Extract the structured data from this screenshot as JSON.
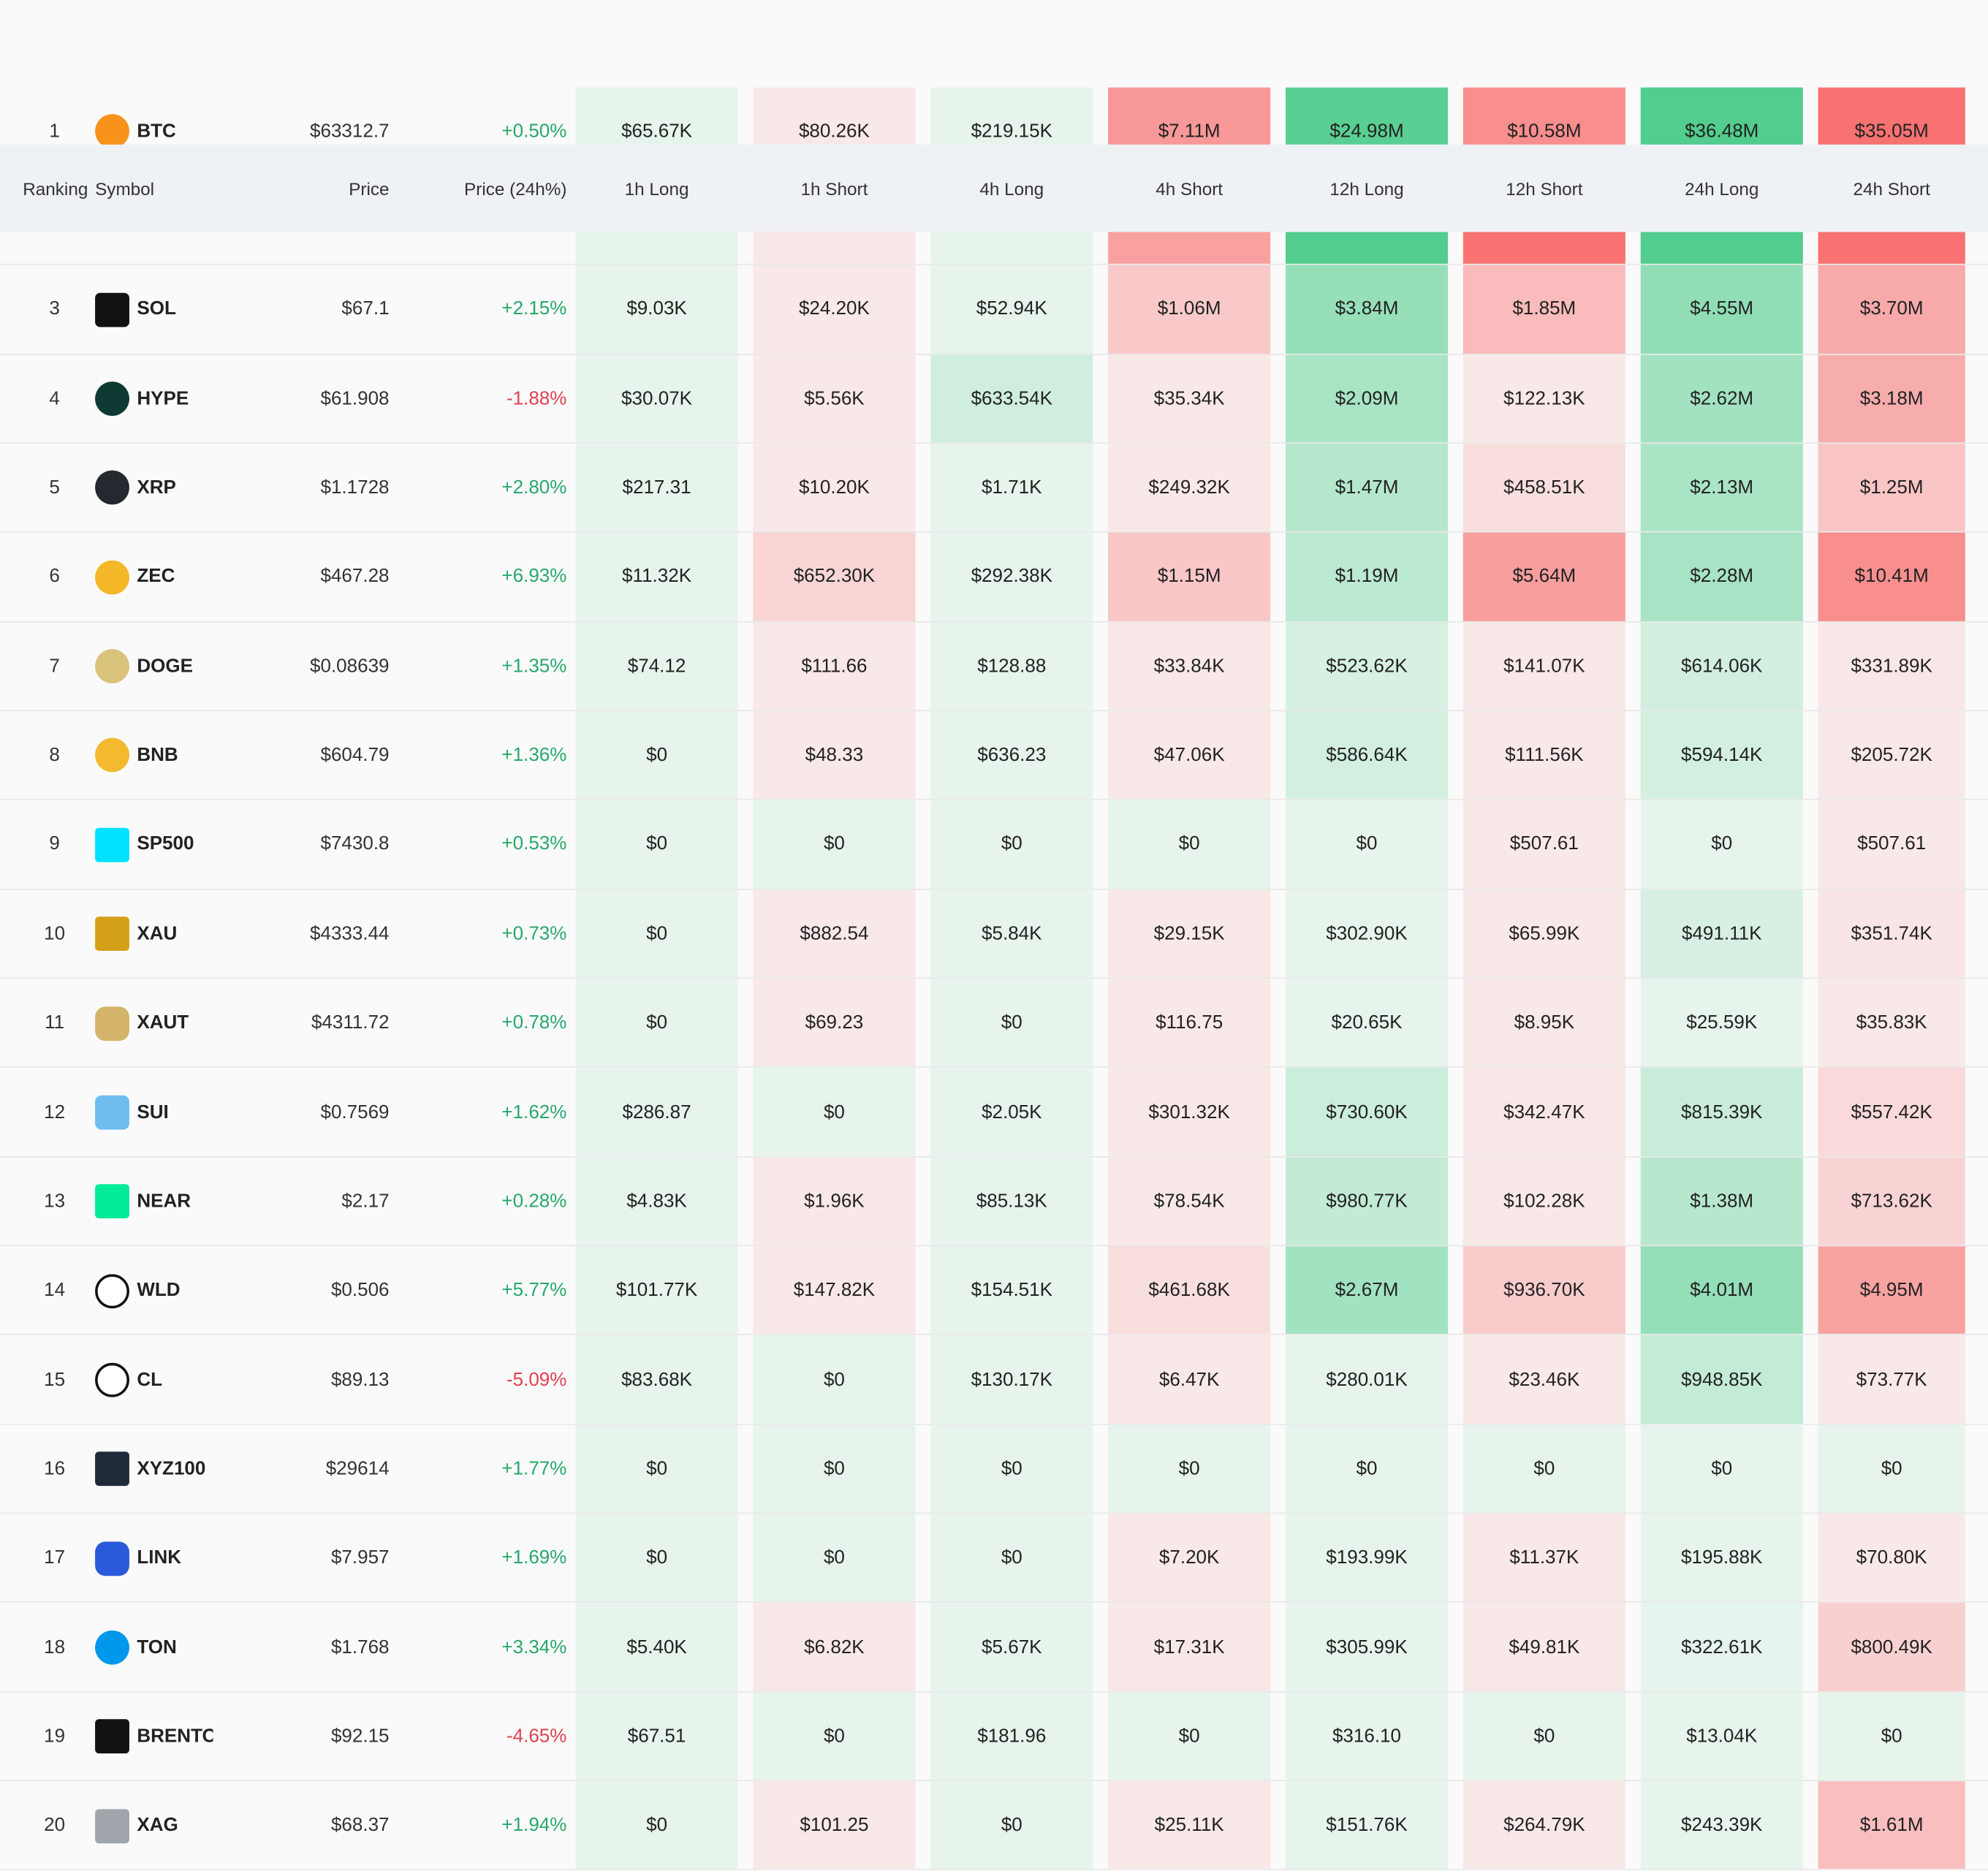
{
  "table": {
    "headers": [
      "Ranking",
      "Symbol",
      "Price",
      "Price (24h%)",
      "1h Long",
      "1h Short",
      "4h Long",
      "4h Short",
      "12h Long",
      "12h Short",
      "24h Long",
      "24h Short"
    ],
    "rows": [
      {
        "ranking": 1,
        "symbol": "BTC",
        "price": "$63312.7",
        "change": "+0.50%",
        "values": [
          "$65.67K",
          "$80.26K",
          "$219.15K",
          "$7.11M",
          "$24.98M",
          "$10.58M",
          "$36.48M",
          "$35.05M"
        ]
      },
      {
        "ranking": 3,
        "symbol": "SOL",
        "price": "$67.1",
        "change": "+2.15%",
        "values": [
          "$9.03K",
          "$24.20K",
          "$52.94K",
          "$1.06M",
          "$3.84M",
          "$1.85M",
          "$4.55M",
          "$3.70M"
        ]
      },
      {
        "ranking": 4,
        "symbol": "HYPE",
        "price": "$61.908",
        "change": "-1.88%",
        "values": [
          "$30.07K",
          "$5.56K",
          "$633.54K",
          "$35.34K",
          "$2.09M",
          "$122.13K",
          "$2.62M",
          "$3.18M"
        ]
      },
      {
        "ranking": 5,
        "symbol": "XRP",
        "price": "$1.1728",
        "change": "+2.80%",
        "values": [
          "$217.31",
          "$10.20K",
          "$1.71K",
          "$249.32K",
          "$1.47M",
          "$458.51K",
          "$2.13M",
          "$1.25M"
        ]
      },
      {
        "ranking": 6,
        "symbol": "ZEC",
        "price": "$467.28",
        "change": "+6.93%",
        "values": [
          "$11.32K",
          "$652.30K",
          "$292.38K",
          "$1.15M",
          "$1.19M",
          "$5.64M",
          "$2.28M",
          "$10.41M"
        ]
      },
      {
        "ranking": 7,
        "symbol": "DOGE",
        "price": "$0.08639",
        "change": "+1.35%",
        "values": [
          "$74.12",
          "$111.66",
          "$128.88",
          "$33.84K",
          "$523.62K",
          "$141.07K",
          "$614.06K",
          "$331.89K"
        ]
      },
      {
        "ranking": 8,
        "symbol": "BNB",
        "price": "$604.79",
        "change": "+1.36%",
        "values": [
          "$0",
          "$48.33",
          "$636.23",
          "$47.06K",
          "$586.64K",
          "$111.56K",
          "$594.14K",
          "$205.72K"
        ]
      },
      {
        "ranking": 9,
        "symbol": "SP500",
        "price": "$7430.8",
        "change": "+0.53%",
        "values": [
          "$0",
          "$0",
          "$0",
          "$0",
          "$0",
          "$507.61",
          "$0",
          "$507.61"
        ]
      },
      {
        "ranking": 10,
        "symbol": "XAU",
        "price": "$4333.44",
        "change": "+0.73%",
        "values": [
          "$0",
          "$882.54",
          "$5.84K",
          "$29.15K",
          "$302.90K",
          "$65.99K",
          "$491.11K",
          "$351.74K"
        ]
      },
      {
        "ranking": 11,
        "symbol": "XAUT",
        "price": "$4311.72",
        "change": "+0.78%",
        "values": [
          "$0",
          "$69.23",
          "$0",
          "$116.75",
          "$20.65K",
          "$8.95K",
          "$25.59K",
          "$35.83K"
        ]
      },
      {
        "ranking": 12,
        "symbol": "SUI",
        "price": "$0.7569",
        "change": "+1.62%",
        "values": [
          "$286.87",
          "$0",
          "$2.05K",
          "$301.32K",
          "$730.60K",
          "$342.47K",
          "$815.39K",
          "$557.42K"
        ]
      },
      {
        "ranking": 13,
        "symbol": "NEAR",
        "price": "$2.17",
        "change": "+0.28%",
        "values": [
          "$4.83K",
          "$1.96K",
          "$85.13K",
          "$78.54K",
          "$980.77K",
          "$102.28K",
          "$1.38M",
          "$713.62K"
        ]
      },
      {
        "ranking": 14,
        "symbol": "WLD",
        "price": "$0.506",
        "change": "+5.77%",
        "values": [
          "$101.77K",
          "$147.82K",
          "$154.51K",
          "$461.68K",
          "$2.67M",
          "$936.70K",
          "$4.01M",
          "$4.95M"
        ]
      },
      {
        "ranking": 15,
        "symbol": "CL",
        "price": "$89.13",
        "change": "-5.09%",
        "values": [
          "$83.68K",
          "$0",
          "$130.17K",
          "$6.47K",
          "$280.01K",
          "$23.46K",
          "$948.85K",
          "$73.77K"
        ]
      },
      {
        "ranking": 16,
        "symbol": "XYZ100",
        "price": "$29614",
        "change": "+1.77%",
        "values": [
          "$0",
          "$0",
          "$0",
          "$0",
          "$0",
          "$0",
          "$0",
          "$0"
        ]
      },
      {
        "ranking": 17,
        "symbol": "LINK",
        "price": "$7.957",
        "change": "+1.69%",
        "values": [
          "$0",
          "$0",
          "$0",
          "$7.20K",
          "$193.99K",
          "$11.37K",
          "$195.88K",
          "$70.80K"
        ]
      },
      {
        "ranking": 18,
        "symbol": "TON",
        "price": "$1.768",
        "change": "+3.34%",
        "values": [
          "$5.40K",
          "$6.82K",
          "$5.67K",
          "$17.31K",
          "$305.99K",
          "$49.81K",
          "$322.61K",
          "$800.49K"
        ]
      },
      {
        "ranking": 19,
        "symbol": "BRENTOIL",
        "price": "$92.15",
        "change": "-4.65%",
        "values": [
          "$67.51",
          "$0",
          "$181.96",
          "$0",
          "$316.10",
          "$0",
          "$13.04K",
          "$0"
        ]
      },
      {
        "ranking": 20,
        "symbol": "XAG",
        "price": "$68.37",
        "change": "+1.94%",
        "values": [
          "$0",
          "$101.25",
          "$0",
          "$25.11K",
          "$151.76K",
          "$264.79K",
          "$243.39K",
          "$1.61M"
        ]
      }
    ]
  }
}
